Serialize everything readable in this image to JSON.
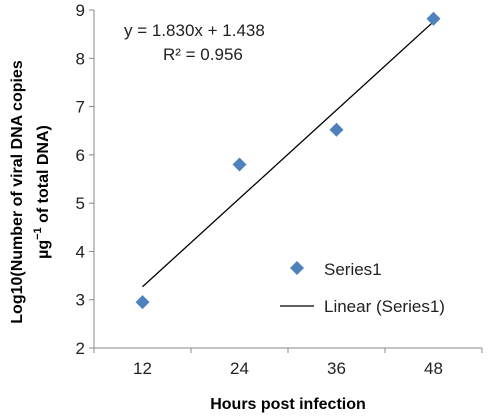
{
  "chart_data": {
    "type": "scatter",
    "xlabel": "Hours post infection",
    "ylabel_line1": "Log10(Number of viral DNA copies",
    "ylabel_line2_prefix": "µg",
    "ylabel_line2_sup": "−1",
    "ylabel_line2_suffix": " of total DNA)",
    "x_ticks": [
      "12",
      "24",
      "36",
      "48"
    ],
    "y_ticks": [
      "2",
      "3",
      "4",
      "5",
      "6",
      "7",
      "8",
      "9"
    ],
    "ylim": [
      2,
      9
    ],
    "grid": false,
    "legend_placement": "bottom-right",
    "series": [
      {
        "name": "Series1",
        "marker": "diamond",
        "color": "#4f81bd",
        "points": [
          {
            "x": 12,
            "y": 2.95
          },
          {
            "x": 24,
            "y": 5.8
          },
          {
            "x": 36,
            "y": 6.52
          },
          {
            "x": 48,
            "y": 8.82
          }
        ]
      }
    ],
    "trendline": {
      "name": "Linear (Series1)",
      "type": "linear",
      "slope": 1.83,
      "intercept": 1.438,
      "index_start": 1,
      "index_end": 4,
      "color": "#000000",
      "equation_text": "y = 1.830x + 1.438",
      "r2_text": "R² = 0.956"
    }
  }
}
